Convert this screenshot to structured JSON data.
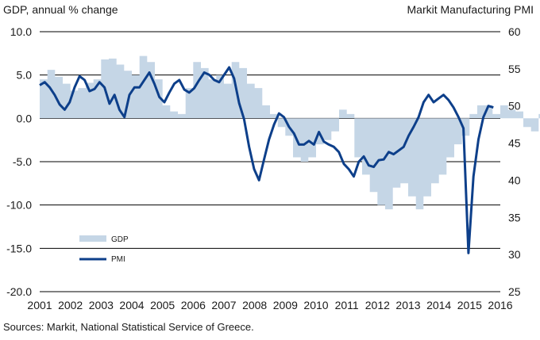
{
  "chart_data": {
    "type": "area+line",
    "left_axis_title": "GDP, annual % change",
    "right_axis_title": "Markit Manufacturing PMI",
    "source": "Sources: Markit, National Statistical Service of Greece.",
    "left_ylim": [
      -20,
      10
    ],
    "right_ylim": [
      25,
      60
    ],
    "left_ticks": [
      "10.0",
      "5.0",
      "0.0",
      "-5.0",
      "-10.0",
      "-15.0",
      "-20.0"
    ],
    "right_ticks": [
      "60",
      "55",
      "50",
      "45",
      "40",
      "35",
      "30",
      "25"
    ],
    "x_labels": [
      "2001",
      "2002",
      "2003",
      "2004",
      "2005",
      "2006",
      "2007",
      "2008",
      "2009",
      "2010",
      "2011",
      "2012",
      "2013",
      "2014",
      "2015",
      "2016"
    ],
    "colors": {
      "gdp": "#c5d6e6",
      "pmi": "#0d3f8a",
      "grid": "#000000"
    },
    "series": [
      {
        "name": "GDP",
        "axis": "left",
        "type": "area",
        "values": [
          4.5,
          5.6,
          4.8,
          4.0,
          3.2,
          3.5,
          4.1,
          4.5,
          6.8,
          6.9,
          6.2,
          5.5,
          5.0,
          7.2,
          6.5,
          4.5,
          1.5,
          0.8,
          0.5,
          3.5,
          6.5,
          5.8,
          4.5,
          5.0,
          4.0,
          6.5,
          5.8,
          4.0,
          3.5,
          1.5,
          0.5,
          -1.0,
          -2.0,
          -4.5,
          -5.0,
          -4.5,
          -3.0,
          -2.5,
          -1.5,
          1.0,
          0.5,
          -4.5,
          -6.5,
          -8.5,
          -10.0,
          -10.5,
          -8.0,
          -7.5,
          -9.0,
          -10.5,
          -9.0,
          -7.5,
          -6.5,
          -4.5,
          -3.0,
          -2.0,
          0.5,
          1.5,
          1.5,
          0.5,
          1.5,
          1.0,
          0.8,
          -1.0,
          -1.5,
          0.5
        ]
      },
      {
        "name": "PMI",
        "axis": "right",
        "type": "line",
        "values": [
          52.8,
          53.2,
          52.5,
          51.5,
          50.2,
          49.5,
          50.5,
          52.5,
          54.0,
          53.5,
          52.0,
          52.3,
          53.2,
          52.5,
          50.3,
          51.5,
          49.5,
          48.5,
          51.5,
          52.5,
          52.5,
          53.5,
          54.5,
          53.0,
          51.2,
          50.5,
          51.8,
          53.0,
          53.5,
          52.2,
          51.8,
          52.4,
          53.5,
          54.5,
          54.2,
          53.5,
          53.2,
          54.2,
          55.2,
          53.7,
          50.4,
          48.2,
          44.5,
          41.5,
          40.0,
          42.8,
          45.5,
          47.5,
          49.0,
          48.5,
          47.2,
          46.3,
          44.8,
          44.8,
          45.3,
          44.8,
          46.5,
          45.2,
          44.8,
          44.5,
          43.8,
          42.2,
          41.5,
          40.5,
          42.5,
          43.2,
          42.0,
          41.8,
          42.7,
          42.8,
          43.8,
          43.5,
          44.0,
          44.5,
          46.0,
          47.2,
          48.5,
          50.5,
          51.5,
          50.5,
          51.0,
          51.5,
          50.8,
          49.8,
          48.5,
          47.0,
          30.2,
          40.5,
          45.5,
          48.5,
          50.0,
          49.8
        ]
      }
    ],
    "legend": [
      {
        "name": "GDP",
        "marker": "area"
      },
      {
        "name": "PMI",
        "marker": "line"
      }
    ]
  }
}
